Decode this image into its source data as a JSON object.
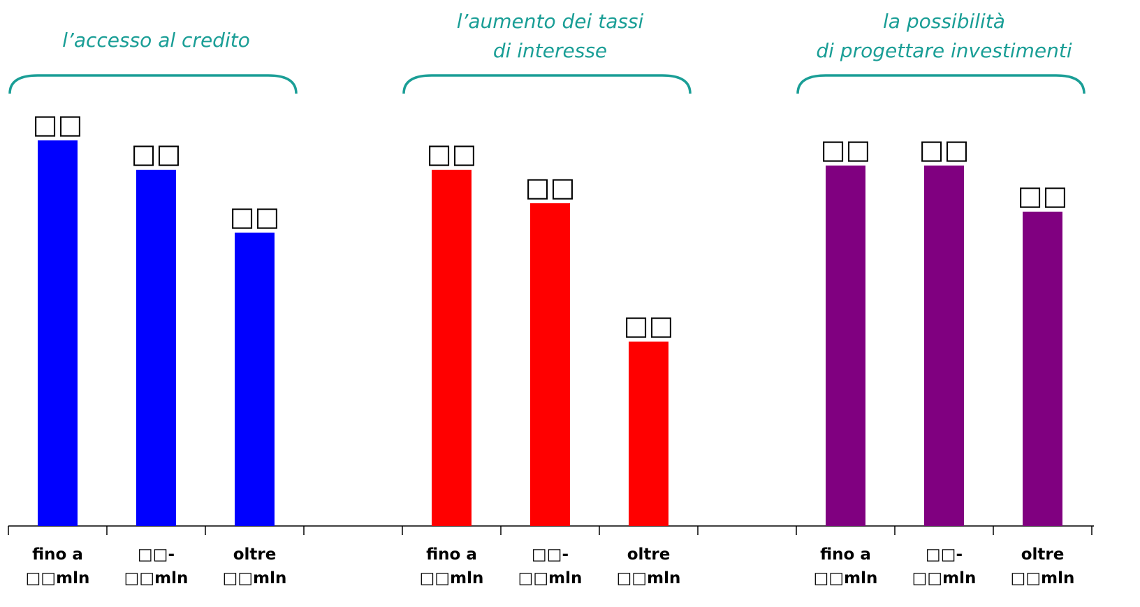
{
  "chart_data": {
    "type": "bar",
    "groups": [
      {
        "title": [
          "l’accesso al credito"
        ],
        "color": "#0000ff",
        "categories": [
          [
            "fino a",
            "□□mln"
          ],
          [
            "□□-",
            "□□mln"
          ],
          [
            "oltre",
            "□□mln"
          ]
        ],
        "values": [
          92,
          85,
          70
        ],
        "value_labels": [
          "□□",
          "□□",
          "□□"
        ]
      },
      {
        "title": [
          "l’aumento dei tassi",
          "di interesse"
        ],
        "color": "#ff0000",
        "categories": [
          [
            "fino a",
            "□□mln"
          ],
          [
            "□□-",
            "□□mln"
          ],
          [
            "oltre",
            "□□mln"
          ]
        ],
        "values": [
          85,
          77,
          44
        ],
        "value_labels": [
          "□□",
          "□□",
          "□□"
        ]
      },
      {
        "title": [
          "la possibilità",
          "di progettare investimenti"
        ],
        "color": "#800080",
        "categories": [
          [
            "fino a",
            "□□mln"
          ],
          [
            "□□-",
            "□□mln"
          ],
          [
            "oltre",
            "□□mln"
          ]
        ],
        "values": [
          86,
          86,
          75
        ],
        "value_labels": [
          "□□",
          "□□",
          "□□"
        ]
      }
    ],
    "ylim": [
      0,
      100
    ],
    "grid": false,
    "legend": "none"
  }
}
